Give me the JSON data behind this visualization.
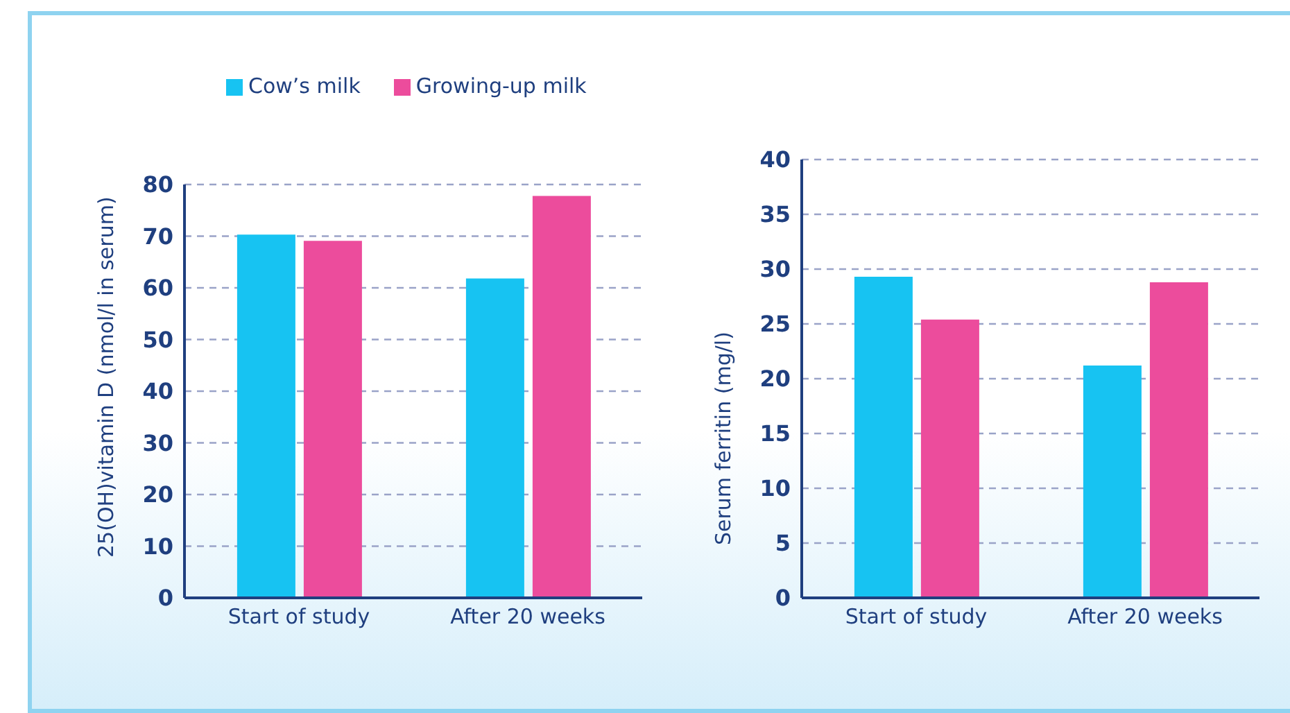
{
  "chart_data": [
    {
      "type": "bar",
      "ylabel": "25(OH)vitamin D (nmol/l in serum)",
      "categories": [
        "Start of study",
        "After 20 weeks"
      ],
      "series": [
        {
          "name": "Cow’s milk",
          "color": "#17c3f2",
          "values": [
            70.3,
            61.8
          ]
        },
        {
          "name": "Growing-up milk",
          "color": "#ec4c9c",
          "values": [
            69.1,
            77.8
          ]
        }
      ],
      "ylim": [
        0,
        80
      ],
      "yticks": [
        0,
        10,
        20,
        30,
        40,
        50,
        60,
        70,
        80
      ],
      "grid": "y",
      "legend": "top left"
    },
    {
      "type": "bar",
      "ylabel": "Serum ferritin (mg/l)",
      "categories": [
        "Start of study",
        "After 20 weeks"
      ],
      "series": [
        {
          "color": "#17c3f2",
          "values": [
            29.3,
            21.2
          ]
        },
        {
          "color": "#ec4c9c",
          "values": [
            25.4,
            28.8
          ]
        }
      ],
      "ylim": [
        0,
        40
      ],
      "yticks": [
        0,
        5,
        10,
        15,
        20,
        25,
        30,
        35,
        40
      ],
      "grid": "y"
    }
  ]
}
